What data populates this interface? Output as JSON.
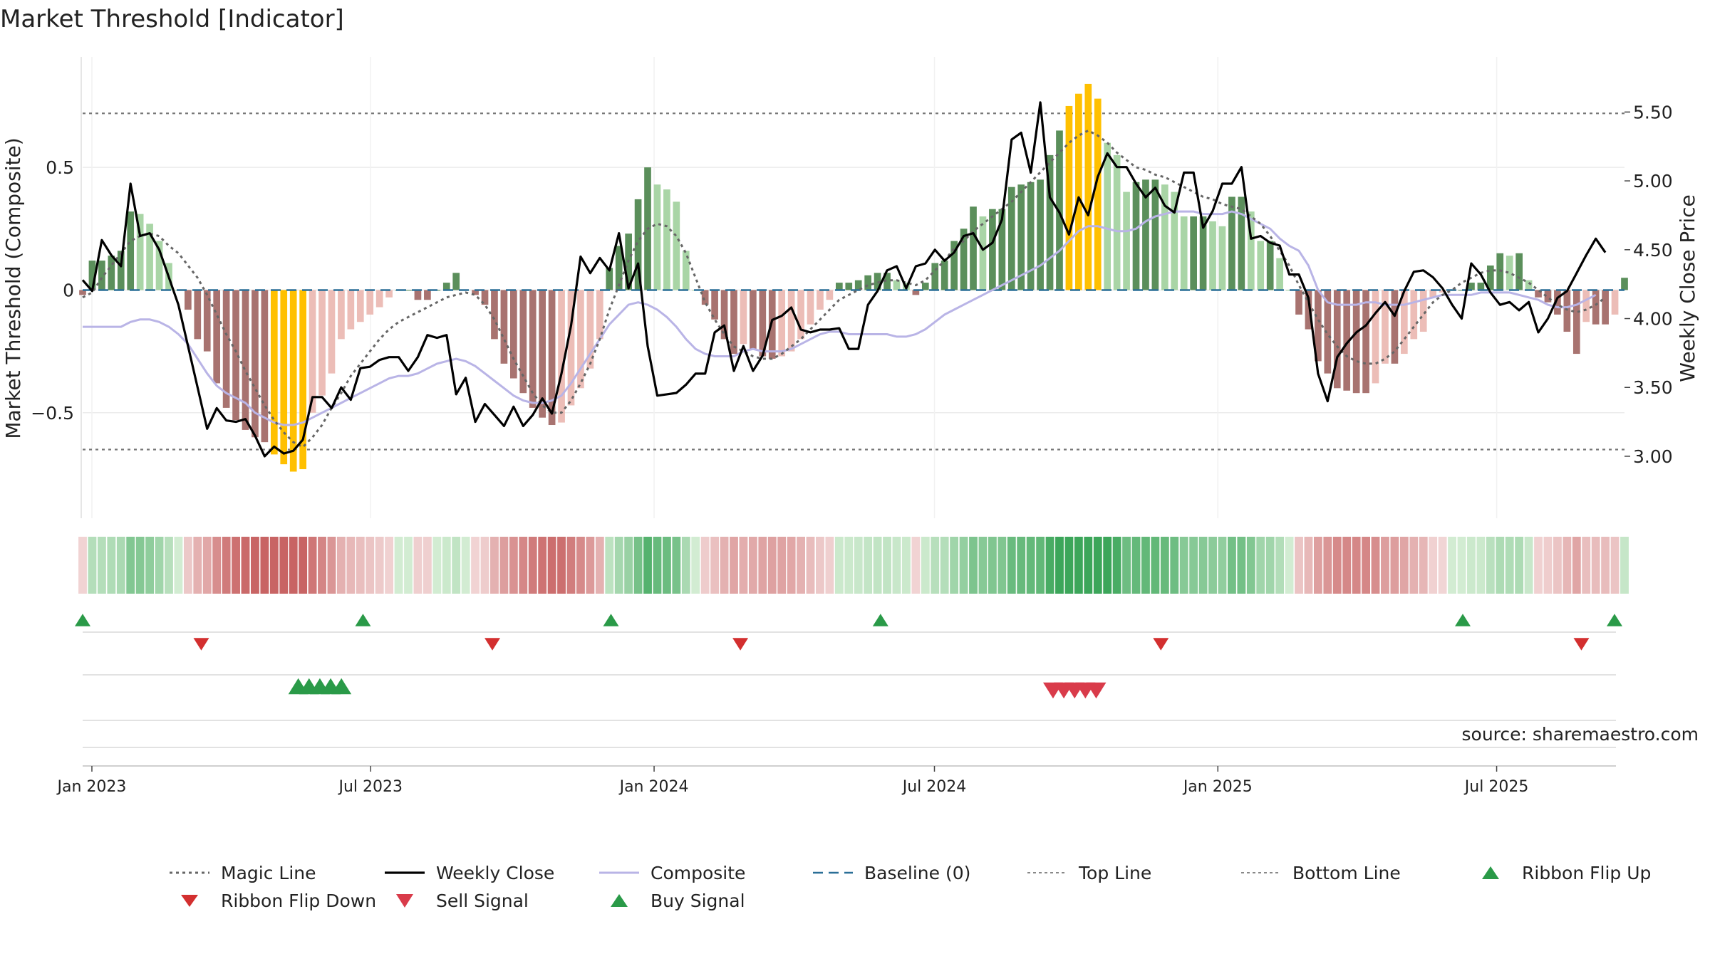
{
  "chart_data": {
    "type": "bar",
    "title": "Market Threshold [Indicator]",
    "ylabel_left": "Market Threshold (Composite)",
    "ylabel_right": "Weekly Close Price",
    "source_note": "source: sharemaestro.com",
    "left_axis": {
      "ylim": [
        -0.93,
        0.95
      ],
      "ticks": [
        0.5,
        0,
        -0.5
      ],
      "tick_labels": [
        "0.5",
        "0",
        "−0.5"
      ]
    },
    "right_axis": {
      "ylim": [
        2.55,
        5.9
      ],
      "ticks": [
        5.5,
        5.0,
        4.5,
        4.0,
        3.5,
        3.0
      ],
      "tick_labels": [
        "5.50",
        "5.00",
        "4.50",
        "4.00",
        "3.50",
        "3.00"
      ]
    },
    "x_axis": {
      "start_date": "2022-12-26",
      "end_date": "2025-09-22",
      "ticks": [
        {
          "date": "2023-01-01",
          "label": "Jan 2023"
        },
        {
          "date": "2023-07-01",
          "label": "Jul 2023"
        },
        {
          "date": "2024-01-01",
          "label": "Jan 2024"
        },
        {
          "date": "2024-07-01",
          "label": "Jul 2024"
        },
        {
          "date": "2025-01-01",
          "label": "Jan 2025"
        },
        {
          "date": "2025-07-01",
          "label": "Jul 2025"
        }
      ]
    },
    "top_line": 0.72,
    "bottom_line": -0.65,
    "composite_histogram": [
      -0.02,
      0.12,
      0.12,
      0.14,
      0.16,
      0.32,
      0.31,
      0.27,
      0.2,
      0.11,
      0,
      -0.08,
      -0.2,
      -0.25,
      -0.38,
      -0.48,
      -0.53,
      -0.57,
      -0.6,
      -0.62,
      -0.67,
      -0.71,
      -0.74,
      -0.73,
      -0.5,
      -0.43,
      -0.34,
      -0.2,
      -0.16,
      -0.13,
      -0.1,
      -0.07,
      -0.03,
      0,
      0,
      -0.04,
      -0.04,
      0,
      0.03,
      0.07,
      0,
      -0.02,
      -0.06,
      -0.2,
      -0.3,
      -0.36,
      -0.42,
      -0.48,
      -0.52,
      -0.55,
      -0.54,
      -0.47,
      -0.4,
      -0.32,
      -0.2,
      0.09,
      0.18,
      0.23,
      0.37,
      0.5,
      0.43,
      0.41,
      0.36,
      0.16,
      0,
      -0.06,
      -0.12,
      -0.2,
      -0.26,
      -0.22,
      -0.24,
      -0.27,
      -0.28,
      -0.27,
      -0.25,
      -0.2,
      -0.14,
      -0.08,
      -0.04,
      0.03,
      0.03,
      0.04,
      0.06,
      0.07,
      0.07,
      0.04,
      0.03,
      -0.02,
      0.03,
      0.11,
      0.12,
      0.2,
      0.25,
      0.34,
      0.3,
      0.33,
      0.33,
      0.42,
      0.43,
      0.44,
      0.45,
      0.55,
      0.65,
      0.75,
      0.8,
      0.84,
      0.78,
      0.6,
      0.55,
      0.4,
      0.44,
      0.45,
      0.45,
      0.43,
      0.4,
      0.3,
      0.3,
      0.3,
      0.28,
      0.26,
      0.38,
      0.38,
      0.32,
      0.2,
      0.2,
      0.13,
      0,
      -0.1,
      -0.16,
      -0.29,
      -0.34,
      -0.4,
      -0.41,
      -0.42,
      -0.42,
      -0.38,
      -0.3,
      -0.3,
      -0.26,
      -0.2,
      -0.17,
      -0.03,
      -0.01,
      0,
      0,
      0.03,
      0.03,
      0.1,
      0.15,
      0.14,
      0.15,
      0.04,
      -0.03,
      -0.05,
      -0.1,
      -0.17,
      -0.26,
      -0.13,
      -0.14,
      -0.14,
      -0.1,
      0.05
    ],
    "histogram_style": {
      "top": 0.72,
      "bottom": -0.65
    },
    "weekly_close": [
      4.28,
      4.2,
      4.57,
      4.46,
      4.38,
      4.98,
      4.6,
      4.62,
      4.5,
      4.3,
      4.1,
      3.8,
      3.5,
      3.2,
      3.35,
      3.26,
      3.25,
      3.27,
      3.15,
      3.0,
      3.07,
      3.02,
      3.04,
      3.12,
      3.43,
      3.43,
      3.35,
      3.5,
      3.41,
      3.64,
      3.65,
      3.7,
      3.72,
      3.72,
      3.62,
      3.72,
      3.88,
      3.86,
      3.88,
      3.45,
      3.57,
      3.25,
      3.38,
      3.3,
      3.22,
      3.36,
      3.22,
      3.3,
      3.42,
      3.31,
      3.6,
      3.95,
      4.45,
      4.33,
      4.44,
      4.35,
      4.62,
      4.22,
      4.4,
      3.8,
      3.44,
      3.45,
      3.46,
      3.52,
      3.6,
      3.6,
      3.9,
      3.95,
      3.62,
      3.8,
      3.62,
      3.73,
      3.99,
      4.02,
      4.08,
      3.92,
      3.9,
      3.92,
      3.92,
      3.93,
      3.78,
      3.78,
      4.1,
      4.2,
      4.35,
      4.38,
      4.22,
      4.38,
      4.4,
      4.5,
      4.42,
      4.48,
      4.6,
      4.62,
      4.5,
      4.55,
      4.72,
      5.3,
      5.35,
      5.06,
      5.57,
      4.88,
      4.77,
      4.61,
      4.88,
      4.75,
      5.03,
      5.2,
      5.1,
      5.1,
      4.98,
      4.88,
      4.95,
      4.82,
      4.77,
      5.06,
      5.06,
      4.66,
      4.78,
      4.98,
      4.98,
      5.1,
      4.58,
      4.6,
      4.55,
      4.53,
      4.32,
      4.32,
      4.15,
      3.6,
      3.4,
      3.72,
      3.82,
      3.9,
      3.95,
      4.04,
      4.12,
      4.02,
      4.2,
      4.34,
      4.35,
      4.3,
      4.22,
      4.1,
      4.0,
      4.4,
      4.32,
      4.19,
      4.1,
      4.12,
      4.06,
      4.12,
      3.9,
      4.0,
      4.15,
      4.2,
      4.33,
      4.46,
      4.58,
      4.48
    ],
    "magic_line": [
      -0.03,
      -0.01,
      0.05,
      0.1,
      0.15,
      0.2,
      0.22,
      0.23,
      0.22,
      0.18,
      0.15,
      0.1,
      0.05,
      -0.02,
      -0.1,
      -0.18,
      -0.25,
      -0.33,
      -0.4,
      -0.47,
      -0.53,
      -0.58,
      -0.62,
      -0.64,
      -0.6,
      -0.55,
      -0.48,
      -0.42,
      -0.35,
      -0.3,
      -0.25,
      -0.2,
      -0.16,
      -0.13,
      -0.11,
      -0.09,
      -0.07,
      -0.05,
      -0.03,
      -0.02,
      -0.01,
      -0.02,
      -0.06,
      -0.12,
      -0.2,
      -0.28,
      -0.35,
      -0.42,
      -0.47,
      -0.5,
      -0.5,
      -0.45,
      -0.38,
      -0.3,
      -0.2,
      -0.08,
      0.02,
      0.12,
      0.2,
      0.25,
      0.27,
      0.26,
      0.22,
      0.15,
      0.05,
      -0.05,
      -0.12,
      -0.18,
      -0.23,
      -0.25,
      -0.27,
      -0.28,
      -0.28,
      -0.26,
      -0.23,
      -0.2,
      -0.16,
      -0.12,
      -0.08,
      -0.04,
      -0.02,
      0,
      0.02,
      0.03,
      0.04,
      0.04,
      0.03,
      0.02,
      0.04,
      0.08,
      0.12,
      0.17,
      0.2,
      0.24,
      0.27,
      0.3,
      0.33,
      0.36,
      0.4,
      0.44,
      0.48,
      0.52,
      0.56,
      0.6,
      0.63,
      0.65,
      0.63,
      0.6,
      0.56,
      0.53,
      0.5,
      0.49,
      0.47,
      0.46,
      0.44,
      0.42,
      0.4,
      0.38,
      0.37,
      0.35,
      0.34,
      0.33,
      0.3,
      0.27,
      0.22,
      0.16,
      0.1,
      0.02,
      -0.05,
      -0.12,
      -0.18,
      -0.23,
      -0.27,
      -0.29,
      -0.3,
      -0.3,
      -0.28,
      -0.25,
      -0.2,
      -0.15,
      -0.1,
      -0.05,
      -0.02,
      0,
      0.03,
      0.05,
      0.07,
      0.08,
      0.08,
      0.07,
      0.05,
      0.03,
      0,
      -0.03,
      -0.06,
      -0.08,
      -0.09,
      -0.08,
      -0.06,
      -0.03
    ],
    "composite_line": [
      -0.15,
      -0.15,
      -0.15,
      -0.15,
      -0.15,
      -0.13,
      -0.12,
      -0.12,
      -0.13,
      -0.15,
      -0.18,
      -0.22,
      -0.28,
      -0.34,
      -0.39,
      -0.42,
      -0.44,
      -0.46,
      -0.5,
      -0.52,
      -0.54,
      -0.55,
      -0.55,
      -0.54,
      -0.52,
      -0.5,
      -0.48,
      -0.46,
      -0.44,
      -0.42,
      -0.4,
      -0.38,
      -0.36,
      -0.35,
      -0.35,
      -0.34,
      -0.32,
      -0.3,
      -0.29,
      -0.28,
      -0.29,
      -0.31,
      -0.34,
      -0.37,
      -0.4,
      -0.43,
      -0.45,
      -0.46,
      -0.46,
      -0.45,
      -0.43,
      -0.38,
      -0.32,
      -0.26,
      -0.2,
      -0.14,
      -0.1,
      -0.06,
      -0.05,
      -0.06,
      -0.08,
      -0.11,
      -0.15,
      -0.2,
      -0.24,
      -0.26,
      -0.27,
      -0.27,
      -0.27,
      -0.25,
      -0.24,
      -0.25,
      -0.25,
      -0.25,
      -0.24,
      -0.22,
      -0.2,
      -0.18,
      -0.17,
      -0.17,
      -0.18,
      -0.18,
      -0.18,
      -0.18,
      -0.18,
      -0.19,
      -0.19,
      -0.18,
      -0.16,
      -0.13,
      -0.1,
      -0.08,
      -0.06,
      -0.04,
      -0.02,
      0,
      0.02,
      0.04,
      0.06,
      0.08,
      0.1,
      0.13,
      0.16,
      0.2,
      0.24,
      0.26,
      0.26,
      0.25,
      0.24,
      0.24,
      0.25,
      0.28,
      0.3,
      0.31,
      0.32,
      0.32,
      0.32,
      0.31,
      0.31,
      0.31,
      0.32,
      0.31,
      0.29,
      0.27,
      0.25,
      0.21,
      0.18,
      0.16,
      0.1,
      0.0,
      -0.05,
      -0.06,
      -0.06,
      -0.06,
      -0.05,
      -0.05,
      -0.06,
      -0.06,
      -0.06,
      -0.05,
      -0.04,
      -0.03,
      -0.02,
      -0.02,
      -0.02,
      -0.02,
      -0.01,
      -0.01,
      -0.01,
      -0.01,
      -0.02,
      -0.03,
      -0.04,
      -0.06,
      -0.07,
      -0.07,
      -0.06,
      -0.04,
      -0.02
    ],
    "ribbon_flip_up_dates": [
      "2022-12-26",
      "2023-06-26",
      "2023-12-04",
      "2024-05-27",
      "2025-06-09",
      "2025-09-22"
    ],
    "ribbon_flip_down_dates": [
      "2023-03-13",
      "2023-09-18",
      "2024-02-26",
      "2024-11-25",
      "2025-08-25"
    ],
    "buy_signal_dates": [
      "2023-05-15",
      "2023-05-22",
      "2023-05-29",
      "2023-06-05",
      "2023-06-12"
    ],
    "sell_signal_dates": [
      "2024-09-16",
      "2024-09-23",
      "2024-09-30",
      "2024-10-07",
      "2024-10-14"
    ],
    "legend": [
      {
        "label": "Magic Line",
        "style": "dotted-gray"
      },
      {
        "label": "Weekly Close",
        "style": "solid-black"
      },
      {
        "label": "Composite",
        "style": "solid-lavender"
      },
      {
        "label": "Baseline (0)",
        "style": "dashed-blue"
      },
      {
        "label": "Top Line",
        "style": "dotted-lightgray"
      },
      {
        "label": "Bottom Line",
        "style": "dotted-lightgray"
      },
      {
        "label": "Ribbon Flip Up",
        "style": "triangle-up-green"
      },
      {
        "label": "Ribbon Flip Down",
        "style": "triangle-down-red"
      },
      {
        "label": "Sell Signal",
        "style": "triangle-down-crimson"
      },
      {
        "label": "Buy Signal",
        "style": "triangle-up-green"
      }
    ],
    "colors": {
      "strong_pos": "#5b8f5b",
      "weak_pos": "#a9d5a6",
      "strong_neg": "#a87370",
      "weak_neg": "#ecbdb7",
      "extreme": "#ffc000",
      "close": "#000000",
      "magic": "#666666",
      "composite": "#b9b4e6",
      "baseline": "#2a6f97",
      "flip_up": "#2a9a48",
      "flip_down": "#d32f2f",
      "sell": "#d93b4a",
      "buy": "#2a9a48"
    }
  }
}
